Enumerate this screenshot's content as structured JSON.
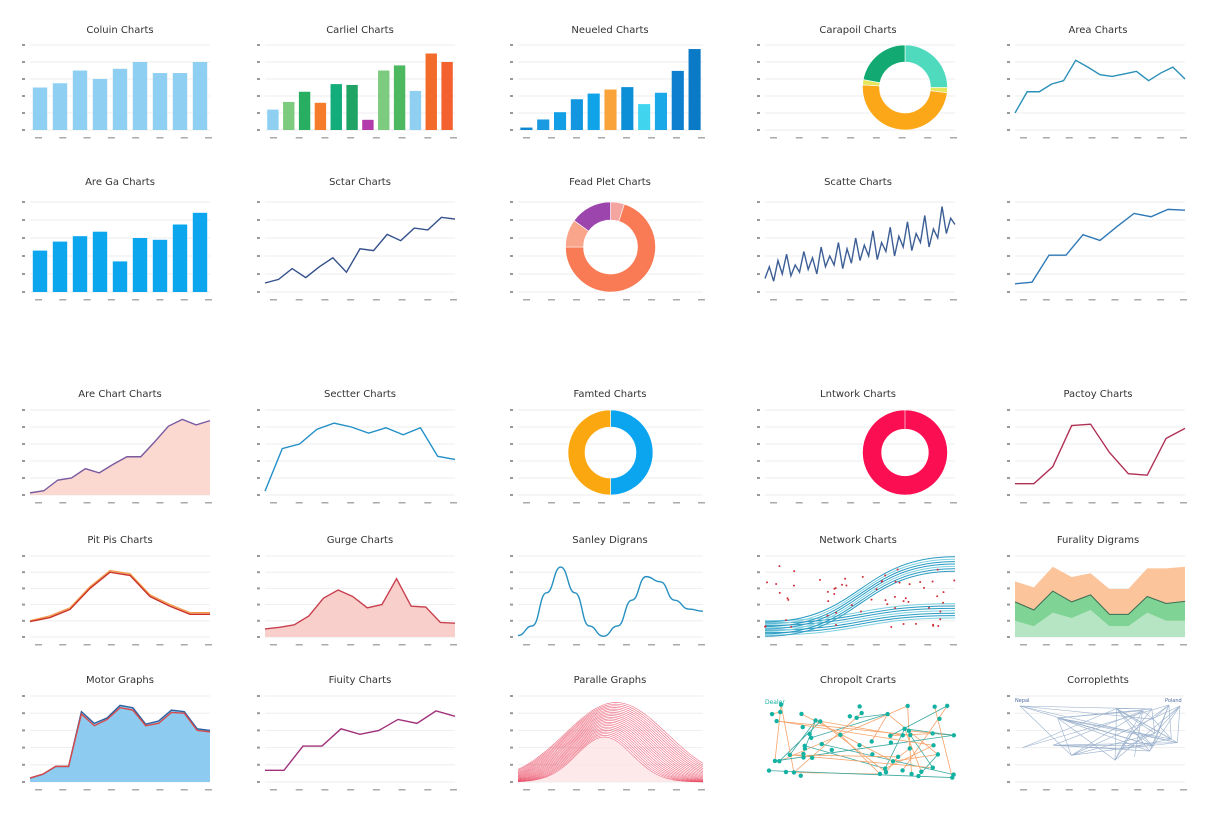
{
  "chart_data": [
    {
      "title": "Coluin Charts",
      "type": "bar",
      "color": "#8fd0f2",
      "values": [
        5.0,
        5.5,
        7.0,
        6.0,
        7.2,
        8.0,
        6.7,
        6.7,
        8.0
      ],
      "ylim": [
        0,
        10
      ],
      "grid": true
    },
    {
      "title": "Carliel Charts",
      "type": "bar",
      "values": [
        2.4,
        3.3,
        4.5,
        3.2,
        5.4,
        5.3,
        1.2,
        7.0,
        7.6,
        4.6,
        9.0,
        8.0
      ],
      "colors": [
        "#8fd0f2",
        "#7dcb7f",
        "#27ae60",
        "#f57c2a",
        "#12ad7a",
        "#20a465",
        "#b23aaa",
        "#7dcb7f",
        "#4cb860",
        "#8fd0f2",
        "#f36b2b",
        "#f2612e"
      ],
      "ylim": [
        0,
        10
      ],
      "grid": true
    },
    {
      "title": "Neueled Charts",
      "type": "bar",
      "values": [
        0.3,
        1.3,
        2.2,
        3.8,
        4.5,
        5.0,
        5.3,
        3.2,
        4.6,
        7.3,
        10.0
      ],
      "colors": [
        "#0e88d3",
        "#1a9ae0",
        "#129fe5",
        "#1296df",
        "#0fa4ea",
        "#f9a33a",
        "#0d8fd8",
        "#41d4ee",
        "#1aa8e8",
        "#0d7fce",
        "#0b7ac6"
      ],
      "ylim": [
        0,
        10.5
      ],
      "grid": true
    },
    {
      "title": "Carapoil Charts",
      "type": "donut",
      "align": "right",
      "slices": [
        {
          "value": 25,
          "color": "#4fd9bd"
        },
        {
          "value": 2,
          "color": "#e6e65a"
        },
        {
          "value": 49,
          "color": "#fba718"
        },
        {
          "value": 2,
          "color": "#e6e65a"
        },
        {
          "value": 22,
          "color": "#12aa72"
        }
      ],
      "grid": true
    },
    {
      "title": "Area Charts",
      "type": "line",
      "series": [
        {
          "values": [
            2,
            4.5,
            4.5,
            5.4,
            5.8,
            8.2,
            7.4,
            6.5,
            6.3,
            6.6,
            6.9,
            5.8,
            6.7,
            7.4,
            6.0
          ],
          "color": "#2a8fb8"
        }
      ],
      "ylim": [
        0,
        10
      ],
      "grid": true
    },
    {
      "title": "Are Ga Charts",
      "type": "bar",
      "color": "#0ba6ee",
      "values": [
        4.6,
        5.6,
        6.2,
        6.7,
        3.4,
        6.0,
        5.8,
        7.5,
        8.8
      ],
      "ylim": [
        0,
        10
      ],
      "grid": true
    },
    {
      "title": "Sctar Charts",
      "type": "line",
      "series": [
        {
          "values": [
            1,
            1.4,
            2.6,
            1.6,
            2.8,
            3.8,
            2.2,
            4.8,
            4.6,
            6.4,
            5.7,
            7.1,
            6.9,
            8.3,
            8.1
          ],
          "color": "#34508c"
        }
      ],
      "ylim": [
        0,
        10
      ],
      "grid": true
    },
    {
      "title": "Fead Plet Charts",
      "type": "donut",
      "slices": [
        {
          "value": 5,
          "color": "#f4a5a0"
        },
        {
          "value": 70,
          "color": "#f97b55"
        },
        {
          "value": 10,
          "color": "#f9a58c"
        },
        {
          "value": 15,
          "color": "#9c45ad"
        }
      ],
      "grid": true
    },
    {
      "title": "Scatte Charts",
      "type": "line",
      "series": [
        {
          "values": [
            1.5,
            2.8,
            1.2,
            3.5,
            2.0,
            4.2,
            1.8,
            3.0,
            2.2,
            4.5,
            2.5,
            3.8,
            2.0,
            5.0,
            2.8,
            4.0,
            3.0,
            5.5,
            2.6,
            4.8,
            3.2,
            6.0,
            3.5,
            5.2,
            4.0,
            6.8,
            3.6,
            5.5,
            4.5,
            7.2,
            4.0,
            6.2,
            5.0,
            7.8,
            4.6,
            6.5,
            5.5,
            8.5,
            5.0,
            7.0,
            6.0,
            9.5,
            6.5,
            8.2,
            7.5
          ],
          "color": "#3d5f96"
        }
      ],
      "ylim": [
        0,
        10
      ],
      "grid": true
    },
    {
      "title": "",
      "type": "line",
      "series": [
        {
          "values": [
            1,
            1.2,
            4.5,
            4.5,
            7.0,
            6.3,
            8.0,
            9.6,
            9.2,
            10.1,
            10.0
          ],
          "color": "#2f79b6"
        }
      ],
      "ylim": [
        0,
        11
      ],
      "grid": true
    },
    {
      "title": "Are Chart Charts",
      "type": "line",
      "series": [
        {
          "values": [
            0.5,
            1.0,
            3.5,
            4.0,
            6.2,
            5.2,
            7.2,
            9.0,
            9.0,
            12.5,
            16.2,
            17.8,
            16.5,
            17.5
          ],
          "color": "#7a5aa0",
          "fill": "#fbd8d0"
        }
      ],
      "ylim": [
        0,
        20
      ],
      "grid": true
    },
    {
      "title": "Sectter Charts",
      "type": "line",
      "series": [
        {
          "values": [
            0.5,
            6.0,
            6.6,
            8.5,
            9.3,
            8.8,
            8.0,
            8.7,
            7.8,
            8.7,
            5.0,
            4.6
          ],
          "color": "#2390c8"
        }
      ],
      "ylim": [
        0,
        11
      ],
      "grid": true
    },
    {
      "title": "Famted Charts",
      "type": "donut",
      "slices": [
        {
          "value": 50,
          "color": "#0ba5ef"
        },
        {
          "value": 50,
          "color": "#fba70f"
        }
      ],
      "grid": true
    },
    {
      "title": "Lntwork Charts",
      "type": "donut",
      "align": "right",
      "thin": true,
      "slices": [
        {
          "value": 100,
          "color": "#fb0e52"
        }
      ],
      "grid": true
    },
    {
      "title": "Pactoy Charts",
      "type": "line",
      "series": [
        {
          "values": [
            3.8,
            3.8,
            5.0,
            7.9,
            8.0,
            6.0,
            4.5,
            4.4,
            7.0,
            7.7
          ],
          "color": "#b03055"
        }
      ],
      "ylim": [
        3,
        9
      ],
      "grid": true
    },
    {
      "title": "Pit Pis Charts",
      "type": "line",
      "series": [
        {
          "values": [
            2.0,
            2.6,
            3.6,
            6.2,
            8.2,
            7.8,
            5.2,
            4.0,
            3.0,
            3.0
          ],
          "color": "#f49a4a"
        },
        {
          "values": [
            1.9,
            2.4,
            3.4,
            6.0,
            8.0,
            7.6,
            5.0,
            3.8,
            2.8,
            2.8
          ],
          "color": "#c8322a"
        }
      ],
      "ylim": [
        0,
        10
      ],
      "grid": true
    },
    {
      "title": "Gurge Charts",
      "type": "line",
      "series": [
        {
          "values": [
            1.0,
            1.2,
            1.5,
            2.6,
            4.8,
            5.8,
            5.0,
            3.6,
            4.0,
            7.2,
            3.8,
            3.7,
            1.8,
            1.7
          ],
          "color": "#c8404f",
          "fill": "#f8cfcb"
        }
      ],
      "ylim": [
        0,
        10
      ],
      "grid": true
    },
    {
      "title": "Sanley Digrans",
      "type": "line",
      "smooth": true,
      "series": [
        {
          "values": [
            0.2,
            1.5,
            6,
            9.5,
            6,
            1.5,
            0.1,
            1.5,
            5,
            8.2,
            7.5,
            5,
            3.8,
            3.5
          ],
          "color": "#2590c0"
        }
      ],
      "ylim": [
        0,
        11
      ],
      "grid": true
    },
    {
      "title": "Network Charts",
      "type": "flow",
      "grid": true
    },
    {
      "title": "Furality Digrams",
      "type": "stacked_area",
      "series": [
        {
          "values": [
            3,
            2,
            4.5,
            3.5,
            5,
            2,
            2,
            4.5,
            3,
            3
          ],
          "color": "#b6e5c4"
        },
        {
          "values": [
            3.5,
            3.0,
            4.0,
            3.0,
            2.8,
            2.2,
            2.2,
            3.0,
            3.2,
            3.6
          ],
          "color": "#7fd394"
        },
        {
          "values": [
            3.8,
            4.2,
            4.5,
            4.6,
            4.0,
            4.7,
            4.7,
            5.2,
            6.5,
            6.4
          ],
          "color": "#fbc49a"
        }
      ],
      "ylim": [
        0,
        15
      ],
      "grid": true
    },
    {
      "title": "Motor Graphs",
      "type": "line",
      "series": [
        {
          "values": [
            0.5,
            1.0,
            2.0,
            2.0,
            9.0,
            7.5,
            8.2,
            9.8,
            9.5,
            7.4,
            7.8,
            9.2,
            9.0,
            6.8,
            6.6
          ],
          "color": "#2a5fa0",
          "fill": "#8dcbf0"
        },
        {
          "values": [
            0.5,
            1.0,
            2.0,
            2.0,
            8.7,
            7.2,
            8.0,
            9.5,
            9.2,
            7.2,
            7.5,
            8.9,
            8.8,
            6.6,
            6.4
          ],
          "color": "#d84a4a"
        }
      ],
      "ylim": [
        0,
        11
      ],
      "grid": true
    },
    {
      "title": "Fiuity Charts",
      "type": "line",
      "series": [
        {
          "values": [
            1.5,
            1.5,
            4.6,
            4.6,
            6.8,
            6.1,
            6.6,
            8.0,
            7.5,
            9.1,
            8.4
          ],
          "color": "#a0307a"
        }
      ],
      "ylim": [
        0,
        11
      ],
      "grid": true
    },
    {
      "title": "Paralle Graphs",
      "type": "bells",
      "color": "#e9455f",
      "grid": true
    },
    {
      "title": "Chropolt Crarts",
      "type": "node_graph",
      "node_color": "#14b2a2",
      "edge_color": "#f6a36a",
      "label": "Dealer",
      "grid": false
    },
    {
      "title": "Corroplethts",
      "type": "mesh",
      "color": "#9ab0cc",
      "labels": [
        "Nepal",
        "Poland"
      ],
      "grid": true
    }
  ]
}
